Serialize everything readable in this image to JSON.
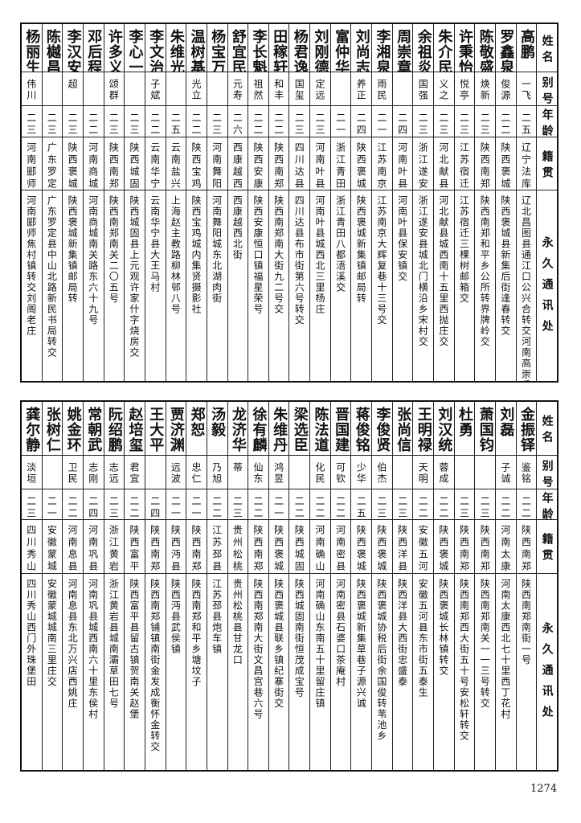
{
  "header": {
    "name": "姓名",
    "alias": "别号",
    "age": "年龄",
    "home": "籍贯",
    "addr": "永久通讯处"
  },
  "tables": [
    {
      "rows": [
        {
          "name": "高鹏",
          "alias": "一飞",
          "age": "二五",
          "home": "辽宁法库",
          "addr": "辽北昌图县通江口公兴合转交河南高崇岳"
        },
        {
          "name": "罗鑫泉",
          "alias": "俊源",
          "age": "二二",
          "home": "陕西褒城",
          "addr": "陕西褒城县新集后街逢春转交"
        },
        {
          "name": "陈敬盛",
          "alias": "焕新",
          "age": "二三",
          "home": "陕西南郑",
          "addr": "陕西南郑和平乡公所转界牌岭交"
        },
        {
          "name": "许秉怡",
          "alias": "悦亭",
          "age": "二三",
          "home": "江苏宿迁",
          "addr": "江苏宿迁三棵树邮箱交"
        },
        {
          "name": "朱介民",
          "alias": "义之",
          "age": "二三",
          "home": "河北献县",
          "addr": "河北献县城西南十五里西抛庄交"
        },
        {
          "name": "余祖炎",
          "alias": "国强",
          "age": "二三",
          "home": "浙江遂安",
          "addr": "浙江遂安县城北门横沿乡宋村交"
        },
        {
          "name": "周崇章",
          "alias": "",
          "age": "二四",
          "home": "河南叶县",
          "addr": "河南叶县保安镇交"
        },
        {
          "name": "李湘泉",
          "alias": "雨民",
          "age": "二一",
          "home": "江苏南京",
          "addr": "江苏南京大辉复巷十三号交"
        },
        {
          "name": "刘尚志",
          "alias": "养正",
          "age": "二四",
          "home": "陕西褒城",
          "addr": "陕西褒城新集镇邮局转"
        },
        {
          "name": "富仲华",
          "alias": "",
          "age": "二一",
          "home": "浙江青田",
          "addr": "浙江青田八都浯溪交"
        },
        {
          "name": "刘刚德",
          "alias": "定远",
          "age": "二三",
          "home": "河南叶县",
          "addr": "河南叶县城西北三里杨庄"
        },
        {
          "name": "杨君逸",
          "alias": "国玺",
          "age": "二三",
          "home": "四川达县",
          "addr": "四川达县布市街第六号转交"
        },
        {
          "name": "田稼轩",
          "alias": "和丰",
          "age": "二二",
          "home": "陕西南郑",
          "addr": "陕西南郑南大街九二号交"
        },
        {
          "name": "李长魁",
          "alias": "祖然",
          "age": "二二",
          "home": "陕西安康",
          "addr": "陕西安康恒口镇福星荣号"
        },
        {
          "name": "舒宜民",
          "alias": "元寿",
          "age": "二六",
          "home": "西康越西",
          "addr": "西康越西北街"
        },
        {
          "name": "杨宝万",
          "alias": "",
          "age": "二三",
          "home": "河南舞阳",
          "addr": "河南舞阳城东北湖肉街"
        },
        {
          "name": "温树基",
          "alias": "光立",
          "age": "二二",
          "home": "陕西宝鸡",
          "addr": "陕西宝鸡城内集贤摄影社"
        },
        {
          "name": "朱维光",
          "alias": "",
          "age": "二五",
          "home": "云南盐兴",
          "addr": "上海赵主教路柳林邨八号"
        },
        {
          "name": "李文治",
          "alias": "子斌",
          "age": "二二",
          "home": "云南华宁",
          "addr": "云南华宁县大王马村"
        },
        {
          "name": "李心一",
          "alias": "",
          "age": "二三",
          "home": "陕西城固",
          "addr": "陕西城固县上元观许家什字烧房交"
        },
        {
          "name": "许多义",
          "alias": "颂群",
          "age": "二三",
          "home": "陕西南郑",
          "addr": "陕西南郑南关二〇五号"
        },
        {
          "name": "邓后程",
          "alias": "",
          "age": "二二",
          "home": "河南商城",
          "addr": "河南商城南关路东六十九号"
        },
        {
          "name": "李汉安",
          "alias": "超",
          "age": "二三",
          "home": "陕西褒城",
          "addr": "陕西褒城新集镇邮局转"
        },
        {
          "name": "陈樾昌",
          "alias": "",
          "age": "二三",
          "home": "广东罗定",
          "addr": "广东罗定县中山北路新民书局转交"
        },
        {
          "name": "杨丽生",
          "alias": "伟川",
          "age": "二三",
          "home": "河南郾师",
          "addr": "河南郾师焦村镇转交刘阁老庄"
        }
      ]
    },
    {
      "rows": [
        {
          "name": "金振铎",
          "alias": "鉴铭",
          "age": "二二",
          "home": "陕西南郑",
          "addr": "陕西南郑南街一号"
        },
        {
          "name": "刘磊",
          "alias": "子诚",
          "age": "二二",
          "home": "河南太康",
          "addr": "河南太康西北七十里西丁花村"
        },
        {
          "name": "萧国钧",
          "alias": "",
          "age": "二三",
          "home": "陕西南郑",
          "addr": "陕西南郑南关一一三号转交"
        },
        {
          "name": "杜勇",
          "alias": "",
          "age": "二三",
          "home": "陕西南郑",
          "addr": "陕西南郑西大街五十号安松轩转交"
        },
        {
          "name": "刘汉统",
          "alias": "蓉成",
          "age": "二二",
          "home": "陕西褒城",
          "addr": "陕西褒城长林镇转交"
        },
        {
          "name": "王明禄",
          "alias": "天明",
          "age": "二二",
          "home": "安徽五河",
          "addr": "安徽五河县东市街五泰生"
        },
        {
          "name": "张尚信",
          "alias": "",
          "age": "二三",
          "home": "陕西洋县",
          "addr": "陕西洋县大西街忠盛泰"
        },
        {
          "name": "李俊贤",
          "alias": "伯杰",
          "age": "二三",
          "home": "陕西褒城",
          "addr": "陕西褒城协税后街余国俊转苇池乡"
        },
        {
          "name": "蒋俊铭",
          "alias": "少华",
          "age": "二五",
          "home": "陕西褒城",
          "addr": "陕西褒城新集草巷子源兴诚"
        },
        {
          "name": "晋国建",
          "alias": "可钦",
          "age": "二二",
          "home": "河南密县",
          "addr": "河南密县石婆口茶庵村"
        },
        {
          "name": "陈法道",
          "alias": "化民",
          "age": "二二",
          "home": "河南确山",
          "addr": "河南确山东南五十里留庄镇"
        },
        {
          "name": "梁选臣",
          "alias": "",
          "age": "二二",
          "home": "陕西城固",
          "addr": "陕西城固南街恒茂成宝号"
        },
        {
          "name": "朱维丹",
          "alias": "鸿昱",
          "age": "二一",
          "home": "陕西褒城",
          "addr": "陕西褒城县联乡镇纪寨街交"
        },
        {
          "name": "徐有麟",
          "alias": "仙东",
          "age": "二二",
          "home": "陕西南郑",
          "addr": "陕西南郑南大街文昌宫巷六号"
        },
        {
          "name": "龙济华",
          "alias": "蒂",
          "age": "二三",
          "home": "贵州松桃",
          "addr": "贵州松桃县甘龙口"
        },
        {
          "name": "汤毅",
          "alias": "乃旭",
          "age": "二二",
          "home": "江苏邳县",
          "addr": "江苏邳县炮车镇"
        },
        {
          "name": "郑恕",
          "alias": "忠仁",
          "age": "二一",
          "home": "陕西南郑",
          "addr": "陕西南郑和平乡塘坟子"
        },
        {
          "name": "贾济渊",
          "alias": "远波",
          "age": "二一",
          "home": "陕西沔县",
          "addr": "陕西沔县武侯镇"
        },
        {
          "name": "王大平",
          "alias": "",
          "age": "二四",
          "home": "陕西南郑",
          "addr": "陕西南郑铺镇南街金发成衡怀金转交"
        },
        {
          "name": "赵培玺",
          "alias": "君宜",
          "age": "二二",
          "home": "陕西富平",
          "addr": "陕西富平县留古镇贺南关赵堡"
        },
        {
          "name": "阮绍鹏",
          "alias": "志远",
          "age": "二三",
          "home": "浙江黄岩",
          "addr": "浙江黄岩县城南灞草田七号"
        },
        {
          "name": "常朝武",
          "alias": "志刚",
          "age": "二四",
          "home": "河南巩县",
          "addr": "河南巩县城西南六十里东侯村"
        },
        {
          "name": "姚金环",
          "alias": "卫民",
          "age": "二二",
          "home": "河南息县",
          "addr": "河南息县东北万兴店西姚庄"
        },
        {
          "name": "张树仁",
          "alias": "",
          "age": "二一",
          "home": "安徽蒙城",
          "addr": "安徽蒙城城南三里庄交"
        },
        {
          "name": "龚尔静",
          "alias": "淡垣",
          "age": "二三",
          "home": "四川秀山",
          "addr": "四川秀山西门外珠堡田"
        }
      ]
    }
  ],
  "page_number": "1274"
}
